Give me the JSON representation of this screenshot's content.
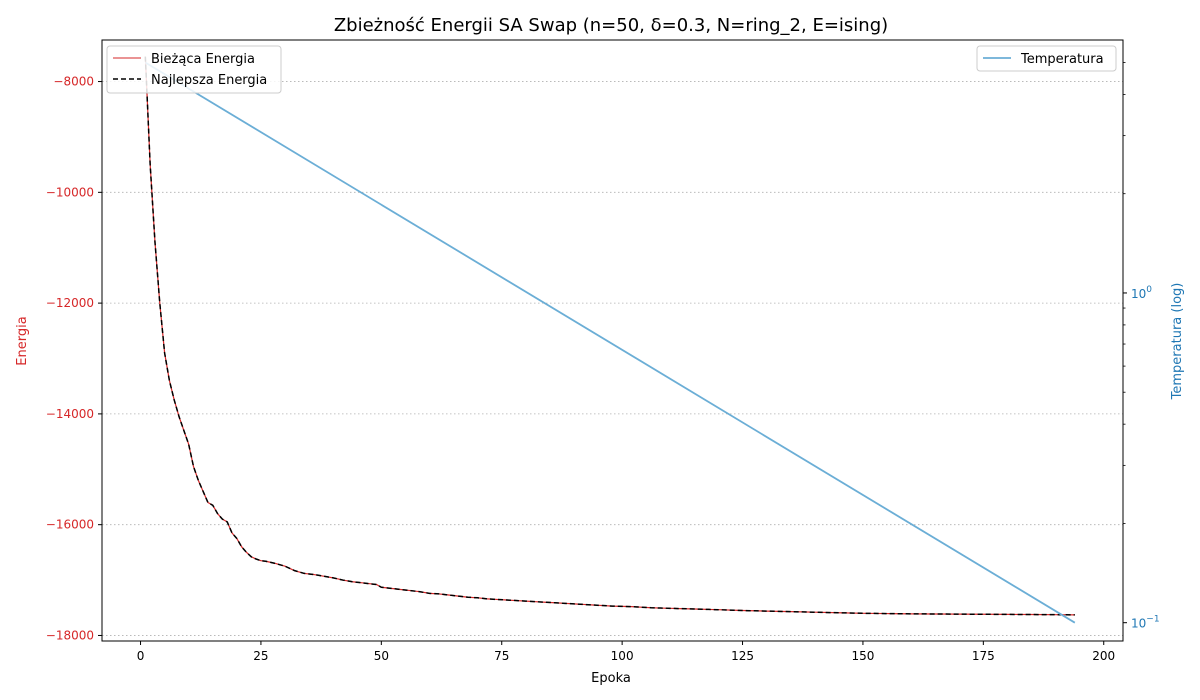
{
  "chart_data": {
    "type": "line",
    "title": "Zbieżność Energii SA Swap (n=50, δ=0.3, N=ring_2, E=ising)",
    "xlabel": "Epoka",
    "ylabel_left": "Energia",
    "ylabel_right": "Temperatura (log)",
    "xlim": [
      -8,
      204
    ],
    "ylim_left": [
      -18100,
      -7250
    ],
    "ylim_right": [
      0.088,
      5.85
    ],
    "right_axis_scale": "log",
    "x_ticks": [
      0,
      25,
      50,
      75,
      100,
      125,
      150,
      175,
      200
    ],
    "y_left_ticks": [
      -8000,
      -10000,
      -12000,
      -14000,
      -16000,
      -18000
    ],
    "y_left_tick_labels": [
      "−8000",
      "−10000",
      "−12000",
      "−14000",
      "−16000",
      "−18000"
    ],
    "y_right_major_ticks": [
      {
        "value": 1,
        "base": "10",
        "exp": "0"
      },
      {
        "value": 0.1,
        "base": "10",
        "exp": "−1"
      }
    ],
    "y_right_minor_ticks": [
      0.2,
      0.3,
      0.4,
      0.5,
      0.6,
      0.7,
      0.8,
      0.9,
      2,
      3,
      4,
      5
    ],
    "grid": "horizontal-dotted-left-axis",
    "colors": {
      "current_energy": "#d62728",
      "best_energy": "#000000",
      "temperature": "#6baed6",
      "left_axis_label": "#d62728",
      "right_axis_label": "#1f77b4"
    },
    "legends": {
      "left": {
        "placement": "top-left",
        "entries": [
          "Bieżąca Energia",
          "Najlepsza Energia"
        ]
      },
      "right": {
        "placement": "top-right",
        "entries": [
          "Temperatura"
        ]
      }
    },
    "series": [
      {
        "name": "Bieżąca Energia",
        "axis": "left",
        "style": "solid",
        "x": [
          1,
          2,
          3,
          4,
          5,
          6,
          7,
          8,
          9,
          10,
          11,
          12,
          13,
          14,
          15,
          16,
          17,
          18,
          19,
          20,
          21,
          22,
          23,
          24,
          25,
          26,
          28,
          30,
          32,
          34,
          36,
          38,
          40,
          42,
          44,
          46,
          48,
          49,
          50,
          52,
          54,
          56,
          58,
          60,
          62,
          64,
          66,
          68,
          70,
          72,
          74,
          76,
          78,
          80,
          82,
          84,
          86,
          88,
          90,
          92,
          94,
          96,
          98,
          100,
          102,
          104,
          106,
          108,
          110,
          112,
          114,
          116,
          118,
          120,
          125,
          130,
          135,
          140,
          145,
          150,
          155,
          160,
          165,
          170,
          175,
          180,
          185,
          190,
          194
        ],
        "y": [
          -7550,
          -9500,
          -10900,
          -12000,
          -12900,
          -13400,
          -13750,
          -14050,
          -14300,
          -14550,
          -14950,
          -15200,
          -15400,
          -15600,
          -15650,
          -15800,
          -15900,
          -15950,
          -16150,
          -16250,
          -16400,
          -16500,
          -16580,
          -16620,
          -16650,
          -16660,
          -16700,
          -16750,
          -16830,
          -16880,
          -16900,
          -16930,
          -16960,
          -17000,
          -17030,
          -17050,
          -17070,
          -17080,
          -17130,
          -17150,
          -17170,
          -17190,
          -17210,
          -17240,
          -17250,
          -17270,
          -17290,
          -17310,
          -17320,
          -17340,
          -17350,
          -17360,
          -17370,
          -17380,
          -17390,
          -17400,
          -17410,
          -17420,
          -17430,
          -17440,
          -17450,
          -17460,
          -17470,
          -17475,
          -17480,
          -17490,
          -17500,
          -17505,
          -17510,
          -17515,
          -17520,
          -17525,
          -17530,
          -17535,
          -17550,
          -17560,
          -17570,
          -17580,
          -17590,
          -17600,
          -17605,
          -17610,
          -17612,
          -17615,
          -17617,
          -17620,
          -17622,
          -17625,
          -17628
        ]
      },
      {
        "name": "Najlepsza Energia",
        "axis": "left",
        "style": "dashed",
        "x": [
          1,
          2,
          3,
          4,
          5,
          6,
          7,
          8,
          9,
          10,
          11,
          12,
          13,
          14,
          15,
          16,
          17,
          18,
          19,
          20,
          21,
          22,
          23,
          24,
          25,
          26,
          28,
          30,
          32,
          34,
          36,
          38,
          40,
          42,
          44,
          46,
          48,
          49,
          50,
          52,
          54,
          56,
          58,
          60,
          62,
          64,
          66,
          68,
          70,
          72,
          74,
          76,
          78,
          80,
          82,
          84,
          86,
          88,
          90,
          92,
          94,
          96,
          98,
          100,
          102,
          104,
          106,
          108,
          110,
          112,
          114,
          116,
          118,
          120,
          125,
          130,
          135,
          140,
          145,
          150,
          155,
          160,
          165,
          170,
          175,
          180,
          185,
          190,
          194
        ],
        "y": [
          -7550,
          -9500,
          -10900,
          -12000,
          -12900,
          -13400,
          -13750,
          -14050,
          -14300,
          -14550,
          -14950,
          -15200,
          -15400,
          -15600,
          -15650,
          -15800,
          -15900,
          -15950,
          -16150,
          -16250,
          -16400,
          -16500,
          -16580,
          -16620,
          -16650,
          -16660,
          -16700,
          -16750,
          -16830,
          -16880,
          -16900,
          -16930,
          -16960,
          -17000,
          -17030,
          -17050,
          -17070,
          -17080,
          -17130,
          -17150,
          -17170,
          -17190,
          -17210,
          -17240,
          -17250,
          -17270,
          -17290,
          -17310,
          -17320,
          -17340,
          -17350,
          -17360,
          -17370,
          -17380,
          -17390,
          -17400,
          -17410,
          -17420,
          -17430,
          -17440,
          -17450,
          -17460,
          -17470,
          -17475,
          -17480,
          -17490,
          -17500,
          -17505,
          -17510,
          -17515,
          -17520,
          -17525,
          -17530,
          -17535,
          -17550,
          -17560,
          -17570,
          -17580,
          -17590,
          -17600,
          -17605,
          -17610,
          -17612,
          -17615,
          -17617,
          -17620,
          -17622,
          -17625,
          -17628
        ]
      },
      {
        "name": "Temperatura",
        "axis": "right",
        "style": "solid",
        "x": [
          1,
          194
        ],
        "y": [
          5.0,
          0.1
        ]
      }
    ]
  }
}
